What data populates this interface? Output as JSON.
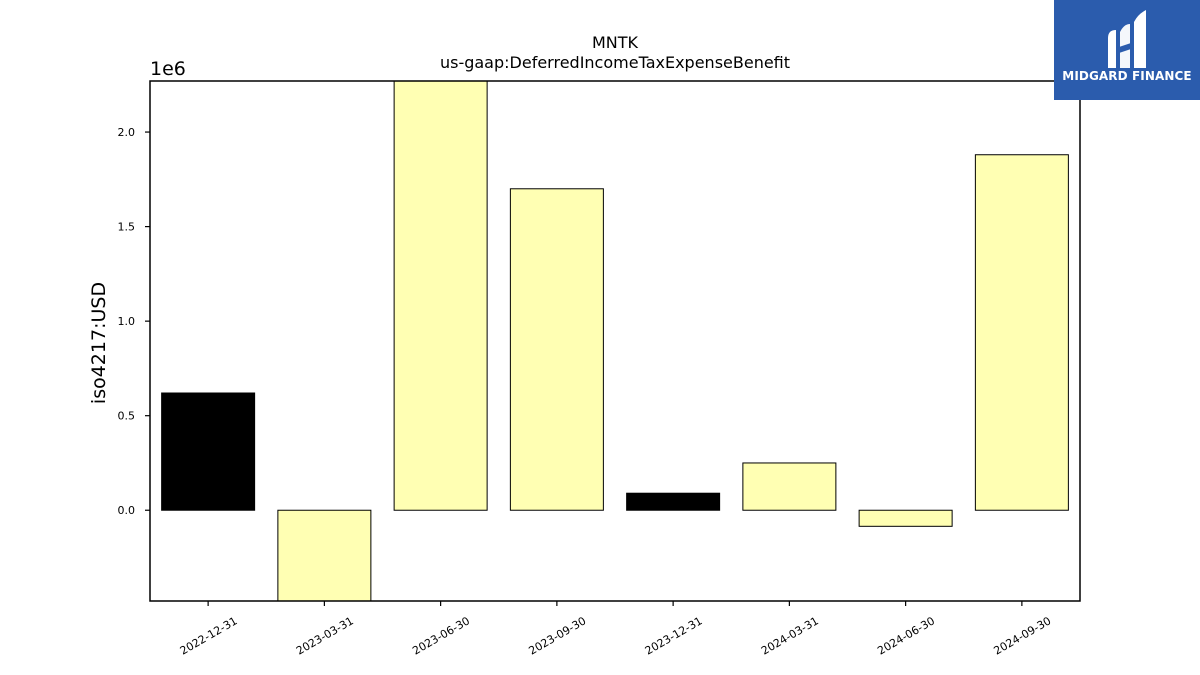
{
  "chart_data": {
    "type": "bar",
    "title": "MNTK",
    "subtitle": "us-gaap:DeferredIncomeTaxExpenseBenefit",
    "ylabel": "iso4217:USD",
    "xlabel": "",
    "y_scale_label": "1e6",
    "categories": [
      "2022-12-31",
      "2023-03-31",
      "2023-06-30",
      "2023-09-30",
      "2023-12-31",
      "2024-03-31",
      "2024-06-30",
      "2024-09-30"
    ],
    "values": [
      620000,
      -490000,
      2280000,
      1700000,
      90000,
      250000,
      -85000,
      1880000
    ],
    "bar_colors": [
      "#000000",
      "#ffffb3",
      "#ffffb3",
      "#ffffb3",
      "#000000",
      "#ffffb3",
      "#ffffb3",
      "#ffffb3"
    ],
    "ylim": [
      -480000,
      2270000
    ],
    "yticks": [
      0,
      500000,
      1000000,
      1500000,
      2000000
    ],
    "ytick_labels": [
      "0.0",
      "0.5",
      "1.0",
      "1.5",
      "2.0"
    ],
    "grid": false
  },
  "logo": {
    "text": "MIDGARD FINANCE",
    "background": "#2b5cad"
  }
}
